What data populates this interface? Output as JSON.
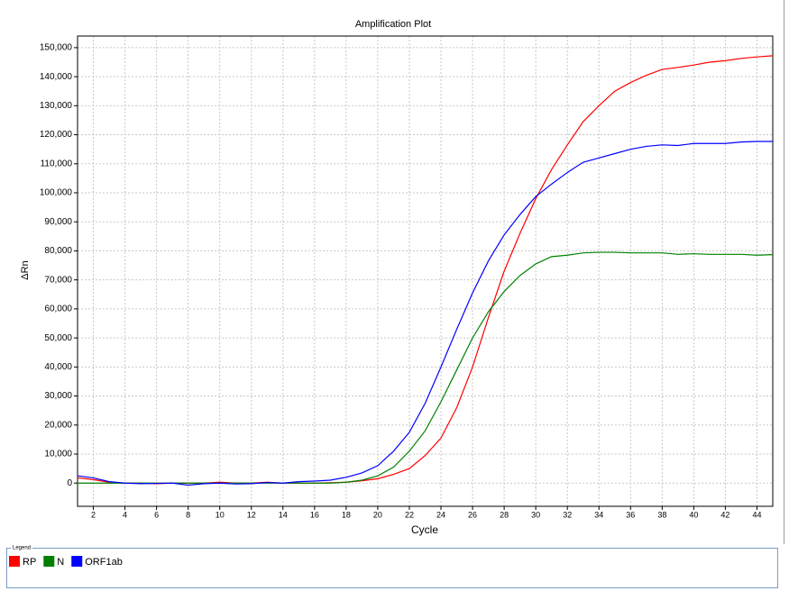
{
  "chart_data": {
    "type": "line",
    "title": "Amplification Plot",
    "x_label": "Cycle",
    "y_label": "ΔRn",
    "x": [
      1,
      2,
      3,
      4,
      5,
      6,
      7,
      8,
      9,
      10,
      11,
      12,
      13,
      14,
      15,
      16,
      17,
      18,
      19,
      20,
      21,
      22,
      23,
      24,
      25,
      26,
      27,
      28,
      29,
      30,
      31,
      32,
      33,
      34,
      35,
      36,
      37,
      38,
      39,
      40,
      41,
      42,
      43,
      44,
      45
    ],
    "series": [
      {
        "name": "RP",
        "color": "#ff0000",
        "values": [
          1800,
          1200,
          300,
          0,
          0,
          -200,
          0,
          0,
          0,
          300,
          0,
          0,
          300,
          0,
          0,
          0,
          100,
          300,
          800,
          1500,
          3000,
          5000,
          9500,
          15500,
          26000,
          40000,
          57000,
          73000,
          86000,
          98000,
          108000,
          116500,
          124500,
          130000,
          135000,
          138000,
          140500,
          142500,
          143200,
          144000,
          145000,
          145500,
          146300,
          146800,
          147200
        ]
      },
      {
        "name": "N",
        "color": "#008000",
        "values": [
          0,
          0,
          0,
          0,
          0,
          0,
          0,
          0,
          0,
          0,
          0,
          0,
          0,
          0,
          0,
          0,
          0,
          300,
          1000,
          2500,
          5500,
          11000,
          18000,
          28000,
          39000,
          50000,
          59000,
          66000,
          71500,
          75500,
          78000,
          78500,
          79300,
          79500,
          79500,
          79300,
          79300,
          79300,
          78800,
          79000,
          78800,
          78800,
          78800,
          78500,
          78700
        ]
      },
      {
        "name": "ORF1ab",
        "color": "#0000ff",
        "values": [
          2500,
          1800,
          500,
          0,
          -200,
          -100,
          0,
          -700,
          -200,
          0,
          -300,
          -200,
          200,
          0,
          500,
          700,
          1000,
          2000,
          3500,
          6000,
          11000,
          17500,
          27500,
          40000,
          53000,
          65500,
          76500,
          85500,
          92500,
          98700,
          103000,
          107000,
          110500,
          112000,
          113500,
          115000,
          116000,
          116500,
          116300,
          117000,
          117000,
          117000,
          117500,
          117700,
          117700
        ]
      }
    ],
    "xlim": [
      1,
      45
    ],
    "ylim": [
      -8000,
      154000
    ],
    "xticks": [
      2,
      4,
      6,
      8,
      10,
      12,
      14,
      16,
      18,
      20,
      22,
      24,
      26,
      28,
      30,
      32,
      34,
      36,
      38,
      40,
      42,
      44
    ],
    "yticks": [
      0,
      {
        "value": 10000,
        "label": "10,000"
      },
      {
        "value": 20000,
        "label": "20,000"
      },
      {
        "value": 30000,
        "label": "30,000"
      },
      {
        "value": 40000,
        "label": "40,000"
      },
      {
        "value": 50000,
        "label": "50,000"
      },
      {
        "value": 60000,
        "label": "60,000"
      },
      {
        "value": 70000,
        "label": "70,000"
      },
      {
        "value": 80000,
        "label": "80,000"
      },
      {
        "value": 90000,
        "label": "90,000"
      },
      {
        "value": 100000,
        "label": "100,000"
      },
      {
        "value": 110000,
        "label": "110,000"
      },
      {
        "value": 120000,
        "label": "120,000"
      },
      {
        "value": 130000,
        "label": "130,000"
      },
      {
        "value": 140000,
        "label": "140,000"
      },
      {
        "value": 150000,
        "label": "150,000"
      }
    ],
    "grid": true,
    "legend_title": "Legend"
  }
}
